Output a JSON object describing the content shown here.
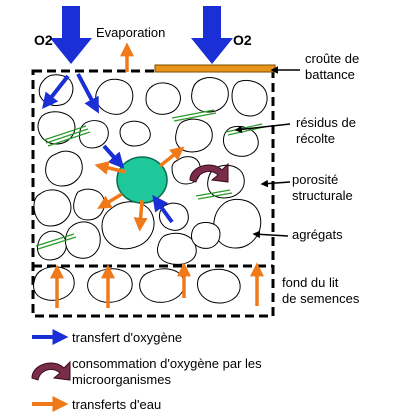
{
  "top": {
    "o2_left": "O2",
    "evaporation": "Evaporation",
    "o2_right": "O2"
  },
  "labels": {
    "crust_1": "croûte de",
    "crust_2": "battance",
    "residue_1": "résidus de",
    "residue_2": "récolte",
    "porosity_1": "porosité",
    "porosity_2": "structurale",
    "aggregates": "agrégats",
    "seedbed_1": "fond du lit",
    "seedbed_2": "de semences"
  },
  "legend": {
    "oxygen_transfer": "transfert d'oxygène",
    "consumption_1": "consommation d'oxygène par les",
    "consumption_2": "microorganismes",
    "water_transfer": "transferts d'eau"
  },
  "colors": {
    "oxygen": "#1a2fd6",
    "water": "#f07a1a",
    "crust": "#e8941a",
    "microbe": "#1fc89a",
    "consumption": "#7a2d4a",
    "residue": "#2a9a2a"
  }
}
